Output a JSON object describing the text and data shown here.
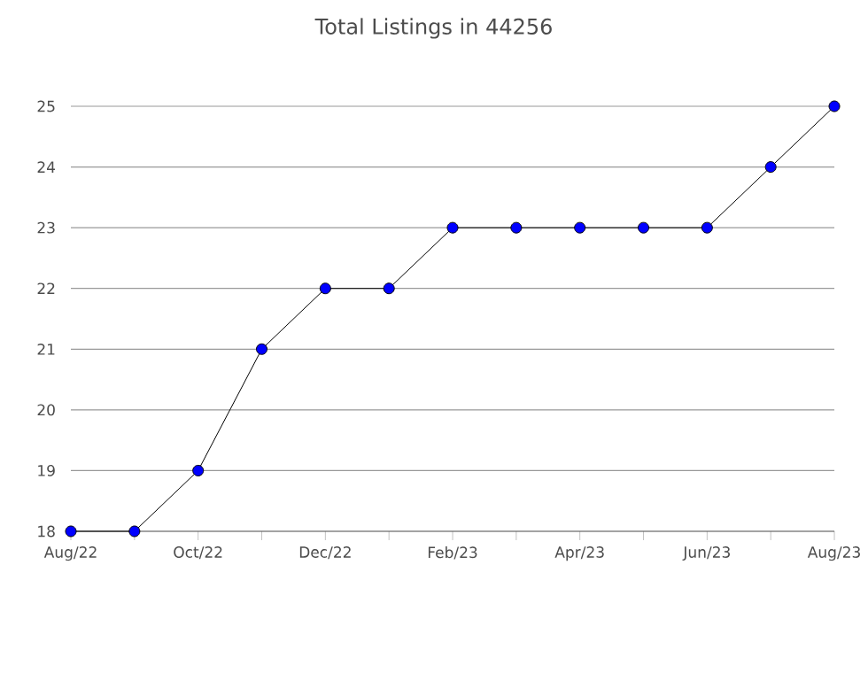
{
  "chart_data": {
    "type": "line",
    "title": "Total Listings in 44256",
    "categories": [
      "Aug/22",
      null,
      "Oct/22",
      null,
      "Dec/22",
      null,
      "Feb/23",
      null,
      "Apr/23",
      null,
      "Jun/23",
      null,
      "Aug/23"
    ],
    "series": [
      {
        "color": "#0000ff",
        "values": [
          18,
          18,
          19,
          21,
          22,
          22,
          23,
          23,
          23,
          23,
          23,
          24,
          25
        ]
      }
    ],
    "ylim": [
      18,
      25
    ],
    "yticks": [
      18,
      19,
      20,
      21,
      22,
      23,
      24,
      25
    ],
    "grid": "y",
    "marker": "circle",
    "line_style": "solid"
  }
}
